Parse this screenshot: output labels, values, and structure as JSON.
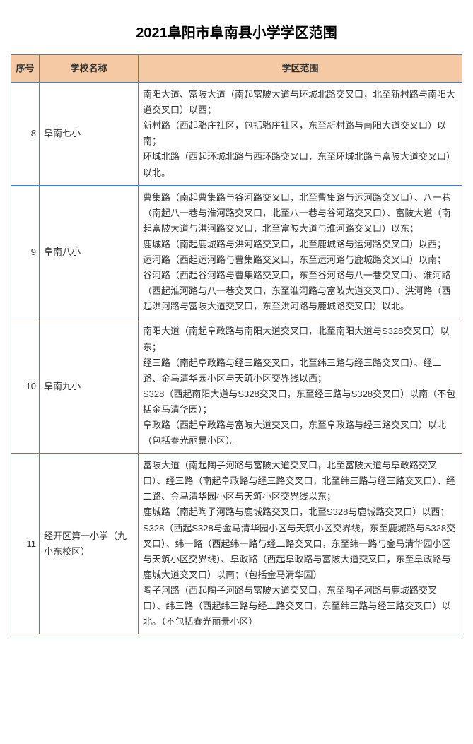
{
  "title": "2021阜阳市阜南县小学学区范围",
  "header": {
    "idx": "序号",
    "name": "学校名称",
    "scope": "学区范围"
  },
  "rows": [
    {
      "idx": "8",
      "name": "阜南七小",
      "scope": "南阳大道、富陂大道（南起富陂大道与环城北路交叉口，北至新村路与南阳大道交叉口）以西；\n新村路（西起骆庄社区，包括骆庄社区，东至新村路与南阳大道交叉口）以南；\n环城北路（西起环城北路与西环路交叉口，东至环城北路与富陂大道交叉口）以北。"
    },
    {
      "idx": "9",
      "name": "阜南八小",
      "scope": "曹集路（南起曹集路与谷河路交叉口，北至曹集路与运河路交叉口）、八一巷（南起八一巷与淮河路交叉口，北至八一巷与谷河路交叉口）、富陂大道（南起富陂大道与洪河路交叉口，北至富陂大道与淮河路交叉口）以东；\n鹿城路（南起鹿城路与洪河路交叉口，北至鹿城路与运河路交叉口）以西；\n运河路（西起运河路与曹集路交叉口，东至运河路与鹿城路交叉口）以南；\n谷河路（西起谷河路与曹集路交叉口，东至谷河路与八一巷交叉口）、淮河路（西起淮河路与八一巷交叉口，东至淮河路与富陂大道交叉口）、洪河路（西起洪河路与富陂大道交叉口，东至洪河路与鹿城路交叉口）以北。"
    },
    {
      "idx": "10",
      "name": "阜南九小",
      "scope": "南阳大道（南起阜政路与南阳大道交叉口，北至南阳大道与S328交叉口）以东；\n经三路（南起阜政路与经三路交叉口，北至纬三路与经三路交叉口）、经二路、金马清华园小区与天筑小区交界线以西；\nS328（西起南阳大道与S328交叉口，东至经三路与S328交叉口）以南（不包括金马清华园）；\n阜政路（西起阜政路与富陂大道交叉口，东至阜政路与经三路交叉口）以北（包括春光丽景小区）。"
    },
    {
      "idx": "11",
      "name": "经开区第一小学（九小东校区）",
      "scope": "富陂大道（南起陶子河路与富陂大道交叉口，北至富陂大道与阜政路交叉口）、经三路（南起阜政路与经三路交叉口，北至纬三路与经三路交叉口）、经二路、金马清华园小区与天筑小区交界线以东；\n鹿城路（南起陶子河路与鹿城路交叉口，北至S328与鹿城路交叉口）以西；\nS328（西起S328与金马清华园小区与天筑小区交界线，东至鹿城路与S328交叉口）、纬一路（西起纬一路与经二路交叉口，东至纬一路与金马清华园小区与天筑小区交界线）、阜政路（西起阜政路与富陂大道交叉口，东至阜政路与鹿城大道交叉口）以南；（包括金马清华园）\n陶子河路（西起陶子河路与富陂大道交叉口，东至陶子河路与鹿城路交叉口）、纬三路（西起纬三路与经二路交叉口，东至纬三路与经三路交叉口）以北。（不包括春光丽景小区）"
    }
  ]
}
